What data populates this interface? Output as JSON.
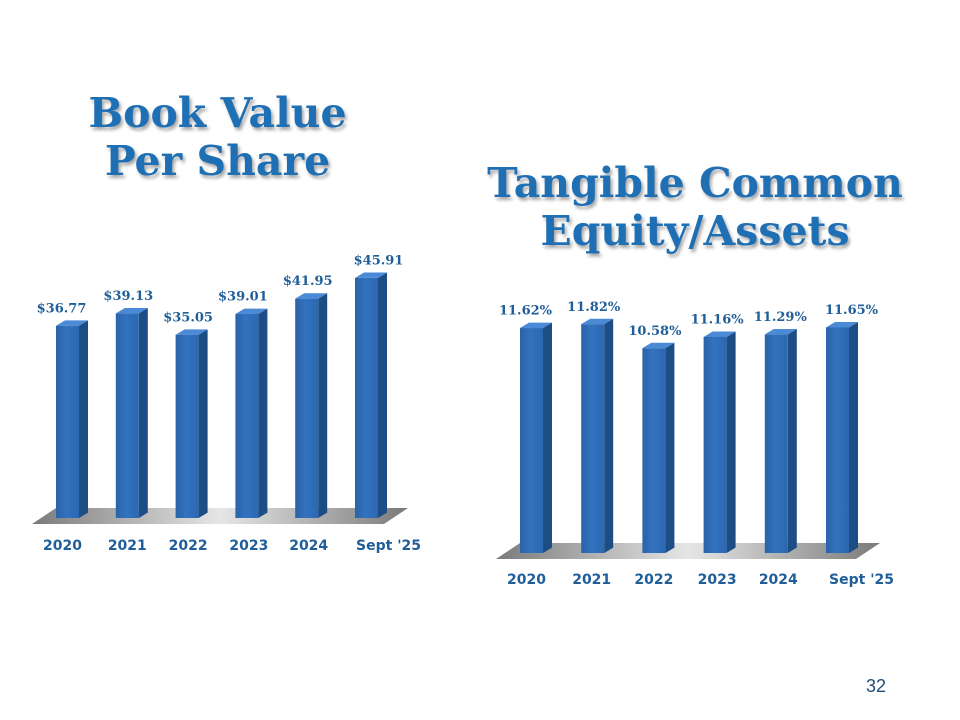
{
  "page_number": "32",
  "colors": {
    "title": "#1f6fb4",
    "bar_front": "#3272bf",
    "bar_side": "#1d4d85",
    "bar_top": "#4a8ad6",
    "label": "#1f5e98"
  },
  "chart_data": [
    {
      "type": "bar",
      "title_lines": [
        "Book Value",
        "Per Share"
      ],
      "categories": [
        "2020",
        "2021",
        "2022",
        "2023",
        "2024",
        "Sept '25"
      ],
      "values": [
        36.77,
        39.13,
        35.05,
        39.01,
        41.95,
        45.91
      ],
      "data_labels": [
        "$36.77",
        "$39.13",
        "$35.05",
        "$39.01",
        "$41.95",
        "$45.91"
      ],
      "ylim": [
        0,
        48
      ],
      "grid": false,
      "legend": "none",
      "style": "3d"
    },
    {
      "type": "bar",
      "title_lines": [
        "Tangible Common",
        "Equity/Assets"
      ],
      "categories": [
        "2020",
        "2021",
        "2022",
        "2023",
        "2024",
        "Sept '25"
      ],
      "values": [
        11.62,
        11.82,
        10.58,
        11.16,
        11.29,
        11.65
      ],
      "data_labels": [
        "11.62%",
        "11.82%",
        "10.58%",
        "11.16%",
        "11.29%",
        "11.65%"
      ],
      "ylim": [
        0,
        12.5
      ],
      "grid": false,
      "legend": "none",
      "style": "3d"
    }
  ]
}
